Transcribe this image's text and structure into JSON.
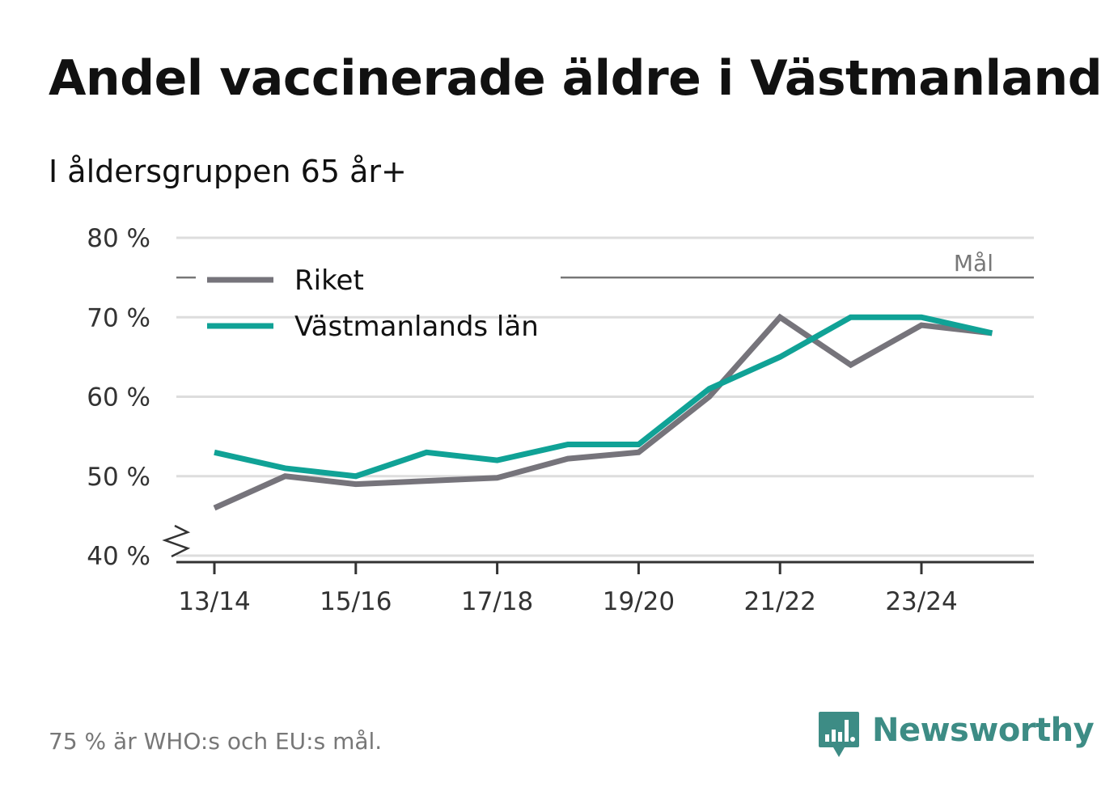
{
  "title": "Andel vaccinerade äldre i Västmanland",
  "subtitle": "I åldersgruppen 65 år+",
  "footnote": "75 % är WHO:s och EU:s mål.",
  "brand": {
    "name": "Newsworthy",
    "icon": "bar-chart-speech-bubble-icon",
    "color": "#3d8c85"
  },
  "chart_data": {
    "type": "line",
    "title": "Andel vaccinerade äldre i Västmanland",
    "subtitle": "I åldersgruppen 65 år+",
    "xlabel": "",
    "ylabel": "",
    "ylim": [
      40,
      80
    ],
    "y_ticks": [
      40,
      50,
      60,
      70,
      80
    ],
    "y_tick_labels": [
      "40 %",
      "50 %",
      "60 %",
      "70 %",
      "80 %"
    ],
    "y_axis_break": true,
    "grid": true,
    "legend_position": "top-left",
    "x": [
      "13/14",
      "14/15",
      "15/16",
      "16/17",
      "17/18",
      "18/19",
      "19/20",
      "20/21",
      "21/22",
      "22/23",
      "23/24",
      "24/25"
    ],
    "x_tick_labels": [
      "13/14",
      "15/16",
      "17/18",
      "19/20",
      "21/22",
      "23/24"
    ],
    "target_line": {
      "value": 75,
      "label": "Mål"
    },
    "series": [
      {
        "name": "Riket",
        "color": "#76747b",
        "values": [
          46,
          50,
          49,
          49.4,
          49.8,
          52.2,
          53,
          60,
          70,
          64,
          69,
          68
        ]
      },
      {
        "name": "Västmanlands län",
        "color": "#10a296",
        "values": [
          53,
          51,
          50,
          53,
          52,
          54,
          54,
          61,
          65,
          70,
          70,
          68
        ]
      }
    ]
  }
}
